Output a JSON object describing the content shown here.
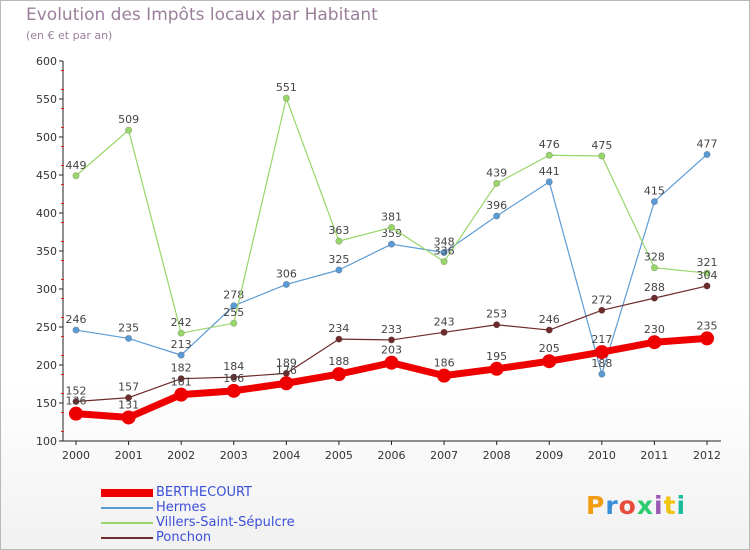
{
  "header": {
    "title": "Evolution des Impôts locaux par Habitant",
    "subtitle": "(en € et par an)"
  },
  "logo": {
    "text": "Proxiti",
    "colors": [
      "#f39c12",
      "#3a8dd8",
      "#e74c3c",
      "#2ecc71",
      "#9b59b6",
      "#f1c40f",
      "#1abc9c"
    ]
  },
  "chart_data": {
    "type": "line",
    "title": "Evolution des Impôts locaux par Habitant",
    "subtitle": "(en € et par an)",
    "x": [
      "2000",
      "2001",
      "2002",
      "2003",
      "2004",
      "2005",
      "2006",
      "2007",
      "2008",
      "2009",
      "2010",
      "2011",
      "2012"
    ],
    "ylim": [
      100,
      600
    ],
    "yticks": [
      100,
      150,
      200,
      250,
      300,
      350,
      400,
      450,
      500,
      550,
      600
    ],
    "grid": false,
    "legend_position": "bottom-left",
    "series": [
      {
        "name": "BERTHECOURT",
        "color": "#ee0000",
        "width": 7,
        "marker": 7,
        "values": [
          136,
          131,
          161,
          166,
          176,
          188,
          203,
          186,
          195,
          205,
          217,
          230,
          235
        ],
        "labels": [
          "136",
          "131",
          "161",
          "166",
          "176",
          "188",
          "203",
          "186",
          "195",
          "205",
          "217",
          "230",
          "235"
        ]
      },
      {
        "name": "Hermes",
        "color": "#5b9bd5",
        "width": 1.2,
        "marker": 3.2,
        "values": [
          246,
          235,
          213,
          278,
          306,
          325,
          359,
          348,
          396,
          441,
          188,
          415,
          477
        ],
        "labels": [
          "246",
          "235",
          "213",
          "278",
          "306",
          "325",
          "359",
          "348",
          "396",
          "441",
          "188",
          "415",
          "477"
        ]
      },
      {
        "name": "Villers-Saint-Sépulcre",
        "color": "#99d66b",
        "width": 1.2,
        "marker": 3.2,
        "values": [
          449,
          509,
          242,
          255,
          551,
          363,
          381,
          336,
          439,
          476,
          475,
          328,
          321
        ],
        "labels": [
          "449",
          "509",
          "242",
          "255",
          "551",
          "363",
          "381",
          "336",
          "439",
          "476",
          "475",
          "328",
          "321"
        ]
      },
      {
        "name": "Ponchon",
        "color": "#6e2b2b",
        "width": 1.2,
        "marker": 3.2,
        "values": [
          152,
          157,
          182,
          184,
          189,
          234,
          233,
          243,
          253,
          246,
          272,
          288,
          304
        ],
        "labels": [
          "152",
          "157",
          "182",
          "184",
          "189",
          "234",
          "233",
          "243",
          "253",
          "246",
          "272",
          "288",
          "304"
        ]
      }
    ]
  }
}
